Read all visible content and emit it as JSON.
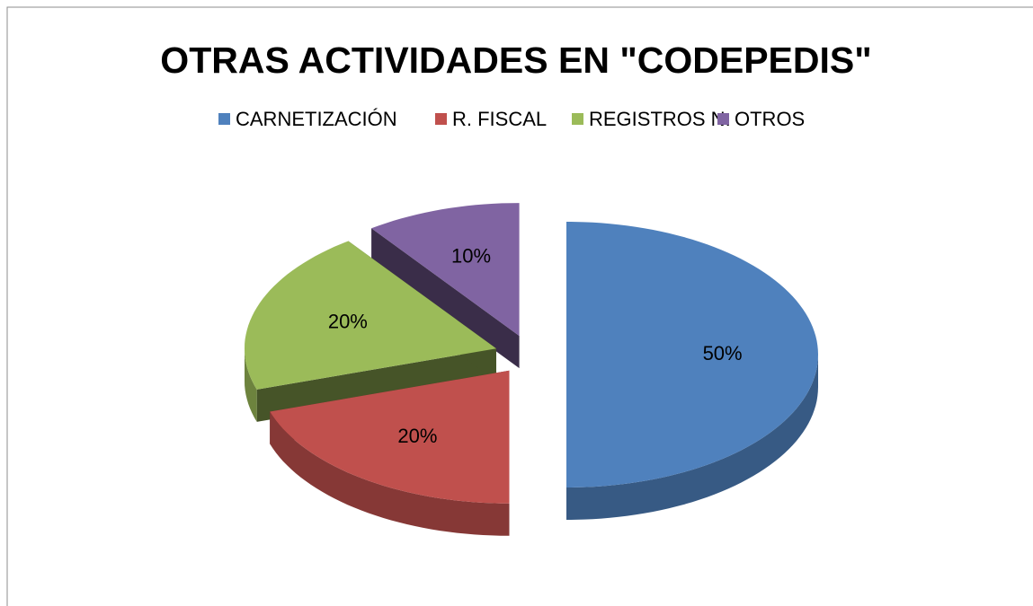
{
  "chart_data": {
    "type": "pie3d",
    "title": "OTRAS ACTIVIDADES EN \"CODEPEDIS\"",
    "categories": [
      "CARNETIZACIÓN",
      "R. FISCAL",
      "REGISTROS N.",
      "OTROS"
    ],
    "values": [
      50,
      20,
      20,
      10
    ],
    "value_labels": [
      "50%",
      "20%",
      "20%",
      "10%"
    ],
    "colors": [
      "#4f81bd",
      "#c0504d",
      "#9bbb59",
      "#8064a2"
    ],
    "legend": "top"
  }
}
